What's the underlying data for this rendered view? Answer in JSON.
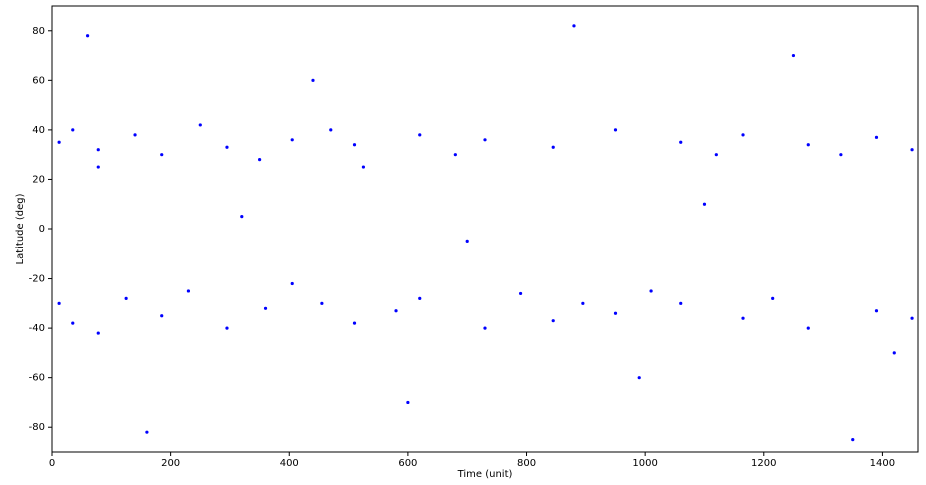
{
  "chart_data": {
    "type": "scatter",
    "x_label": "Time (unit)",
    "y_label": "Latitude (deg)",
    "xlim": [
      0,
      1460
    ],
    "xticks": [
      0,
      200,
      400,
      600,
      800,
      1000,
      1200,
      1400
    ],
    "ylim": [
      -90,
      90
    ],
    "yticks": [
      -80,
      -60,
      -40,
      -20,
      0,
      20,
      40,
      60,
      80
    ],
    "series": [
      {
        "color": "#0000ff",
        "x": [
          12,
          12,
          35,
          35,
          78,
          78,
          78,
          125,
          140,
          185,
          185,
          230,
          250,
          295,
          295,
          350,
          360,
          405,
          405,
          455,
          470,
          510,
          510,
          525,
          580,
          620,
          620,
          680,
          730,
          730,
          790,
          845,
          845,
          895,
          950,
          950,
          1010,
          1060,
          1060,
          1120,
          1165,
          1165,
          1215,
          1275,
          1275,
          1330,
          1390,
          1390,
          1450,
          1450,
          60,
          160,
          320,
          440,
          600,
          700,
          880,
          990,
          1100,
          1250,
          1350,
          1420
        ],
        "values": [
          35,
          -30,
          40,
          -38,
          32,
          -42,
          25,
          -28,
          38,
          30,
          -35,
          -25,
          42,
          33,
          -40,
          28,
          -32,
          36,
          -22,
          -30,
          40,
          34,
          -38,
          25,
          -33,
          38,
          -28,
          30,
          36,
          -40,
          -26,
          33,
          -37,
          -30,
          40,
          -34,
          -25,
          35,
          -30,
          30,
          38,
          -36,
          -28,
          34,
          -40,
          30,
          37,
          -33,
          32,
          -36,
          78,
          -82,
          5,
          60,
          -70,
          -5,
          82,
          -60,
          10,
          70,
          -85,
          -50
        ]
      }
    ]
  }
}
